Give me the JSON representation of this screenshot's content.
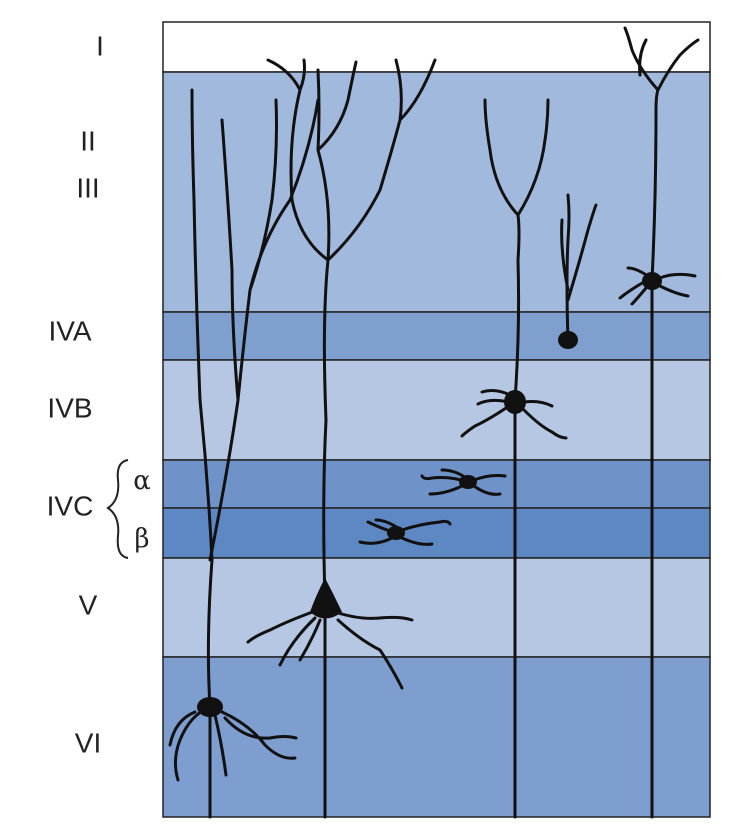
{
  "layers": [
    {
      "label": "I"
    },
    {
      "label": "II"
    },
    {
      "label": "III"
    },
    {
      "label": "IVA"
    },
    {
      "label": "IVB"
    },
    {
      "label": "IVC"
    },
    {
      "label": "V"
    },
    {
      "label": "VI"
    }
  ],
  "ivc_sublayers": [
    "α",
    "β"
  ]
}
